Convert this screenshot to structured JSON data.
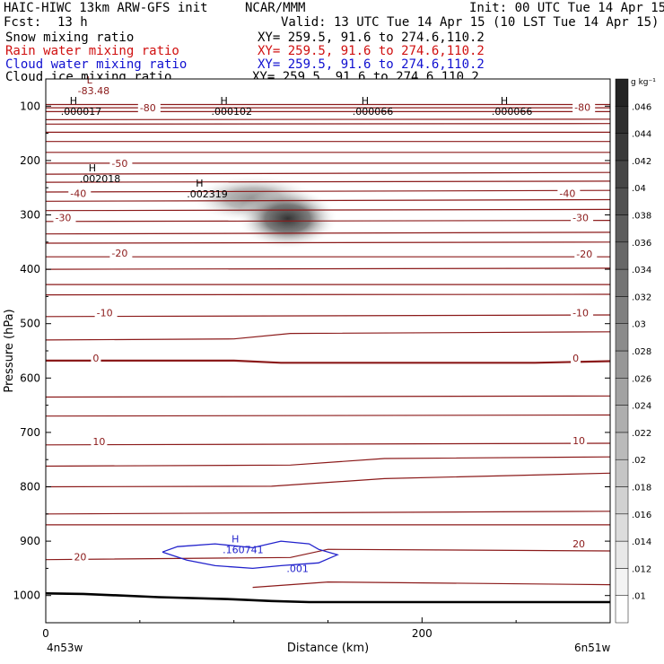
{
  "header": {
    "title": "HAIC-HIWC 13km ARW-GFS init",
    "org": "NCAR/MMM",
    "init": "Init: 00 UTC Tue 14 Apr 15",
    "fcst_label": "Fcst:",
    "fcst_value": "13 h",
    "valid": "Valid: 13 UTC Tue 14 Apr 15 (10 LST Tue 14 Apr 15)",
    "fields": [
      {
        "name": "Snow mixing ratio",
        "xy": "XY= 259.5, 91.6 to 274.6,110.2",
        "color": "#000000"
      },
      {
        "name": "Rain water mixing ratio",
        "xy": "XY= 259.5, 91.6 to 274.6,110.2",
        "color": "#d01010"
      },
      {
        "name": "Cloud water mixing ratio",
        "xy": "XY= 259.5, 91.6 to 274.6,110.2",
        "color": "#1010d0"
      },
      {
        "name": "Cloud ice mixing ratio",
        "xy": "XY= 259.5, 91.6 to 274.6,110.2",
        "color": "#000000"
      }
    ]
  },
  "chart_data": {
    "type": "contour",
    "xlabel": "Distance (km)",
    "ylabel": "Pressure (hPa)",
    "x_ticks": [
      "0",
      "200"
    ],
    "x_ticks_values": [
      0,
      200
    ],
    "xlim": [
      0,
      300
    ],
    "y_ticks": [
      "100",
      "200",
      "300",
      "400",
      "500",
      "600",
      "700",
      "800",
      "900",
      "1000"
    ],
    "y_ticks_values": [
      100,
      200,
      300,
      400,
      500,
      600,
      700,
      800,
      900,
      1000
    ],
    "ylim": [
      50,
      1050
    ],
    "endpoints": {
      "left": "4n53w",
      "right": "6n51w"
    },
    "colorbar": {
      "unit": "g kg⁻¹",
      "labels": [
        ".01",
        ".012",
        ".014",
        ".016",
        ".018",
        ".02",
        ".022",
        ".024",
        ".026",
        ".028",
        ".03",
        ".032",
        ".034",
        ".036",
        ".038",
        ".04",
        ".042",
        ".044",
        ".046"
      ]
    },
    "temperature_contour_labels": [
      {
        "label": "-80",
        "x": 50,
        "p": 108
      },
      {
        "label": "-80",
        "x": 281,
        "p": 107
      },
      {
        "label": "-50",
        "x": 35,
        "p": 210
      },
      {
        "label": "-40",
        "x": 13,
        "p": 265
      },
      {
        "label": "-40",
        "x": 273,
        "p": 265
      },
      {
        "label": "-30",
        "x": 5,
        "p": 310
      },
      {
        "label": "-30",
        "x": 280,
        "p": 310
      },
      {
        "label": "-20",
        "x": 35,
        "p": 375
      },
      {
        "label": "-20",
        "x": 282,
        "p": 377
      },
      {
        "label": "-10",
        "x": 27,
        "p": 485
      },
      {
        "label": "-10",
        "x": 280,
        "p": 485
      },
      {
        "label": "0",
        "x": 25,
        "p": 568
      },
      {
        "label": "0",
        "x": 280,
        "p": 568
      },
      {
        "label": "10",
        "x": 25,
        "p": 722
      },
      {
        "label": "10",
        "x": 280,
        "p": 720
      },
      {
        "label": "20",
        "x": 15,
        "p": 934
      },
      {
        "label": "20",
        "x": 280,
        "p": 910
      }
    ],
    "extrema": [
      {
        "type": "L",
        "value": "-83.48",
        "x": 17,
        "p": 78
      },
      {
        "type": "H",
        "value": ".000017",
        "x": 8,
        "p": 116
      },
      {
        "type": "H",
        "value": ".000102",
        "x": 88,
        "p": 116
      },
      {
        "type": "H",
        "value": ".000066",
        "x": 163,
        "p": 116
      },
      {
        "type": "H",
        "value": ".000066",
        "x": 237,
        "p": 116
      },
      {
        "type": "H",
        "value": ".002018",
        "x": 18,
        "p": 240
      },
      {
        "type": "H",
        "value": ".002319",
        "x": 75,
        "p": 268
      },
      {
        "type": "H",
        "value": ".160741",
        "x": 94,
        "p": 922
      }
    ],
    "cloud_water_contour_label": ".001",
    "snow_max_region": {
      "x_center": 120,
      "p_center": 300,
      "max": 0.0023
    }
  }
}
